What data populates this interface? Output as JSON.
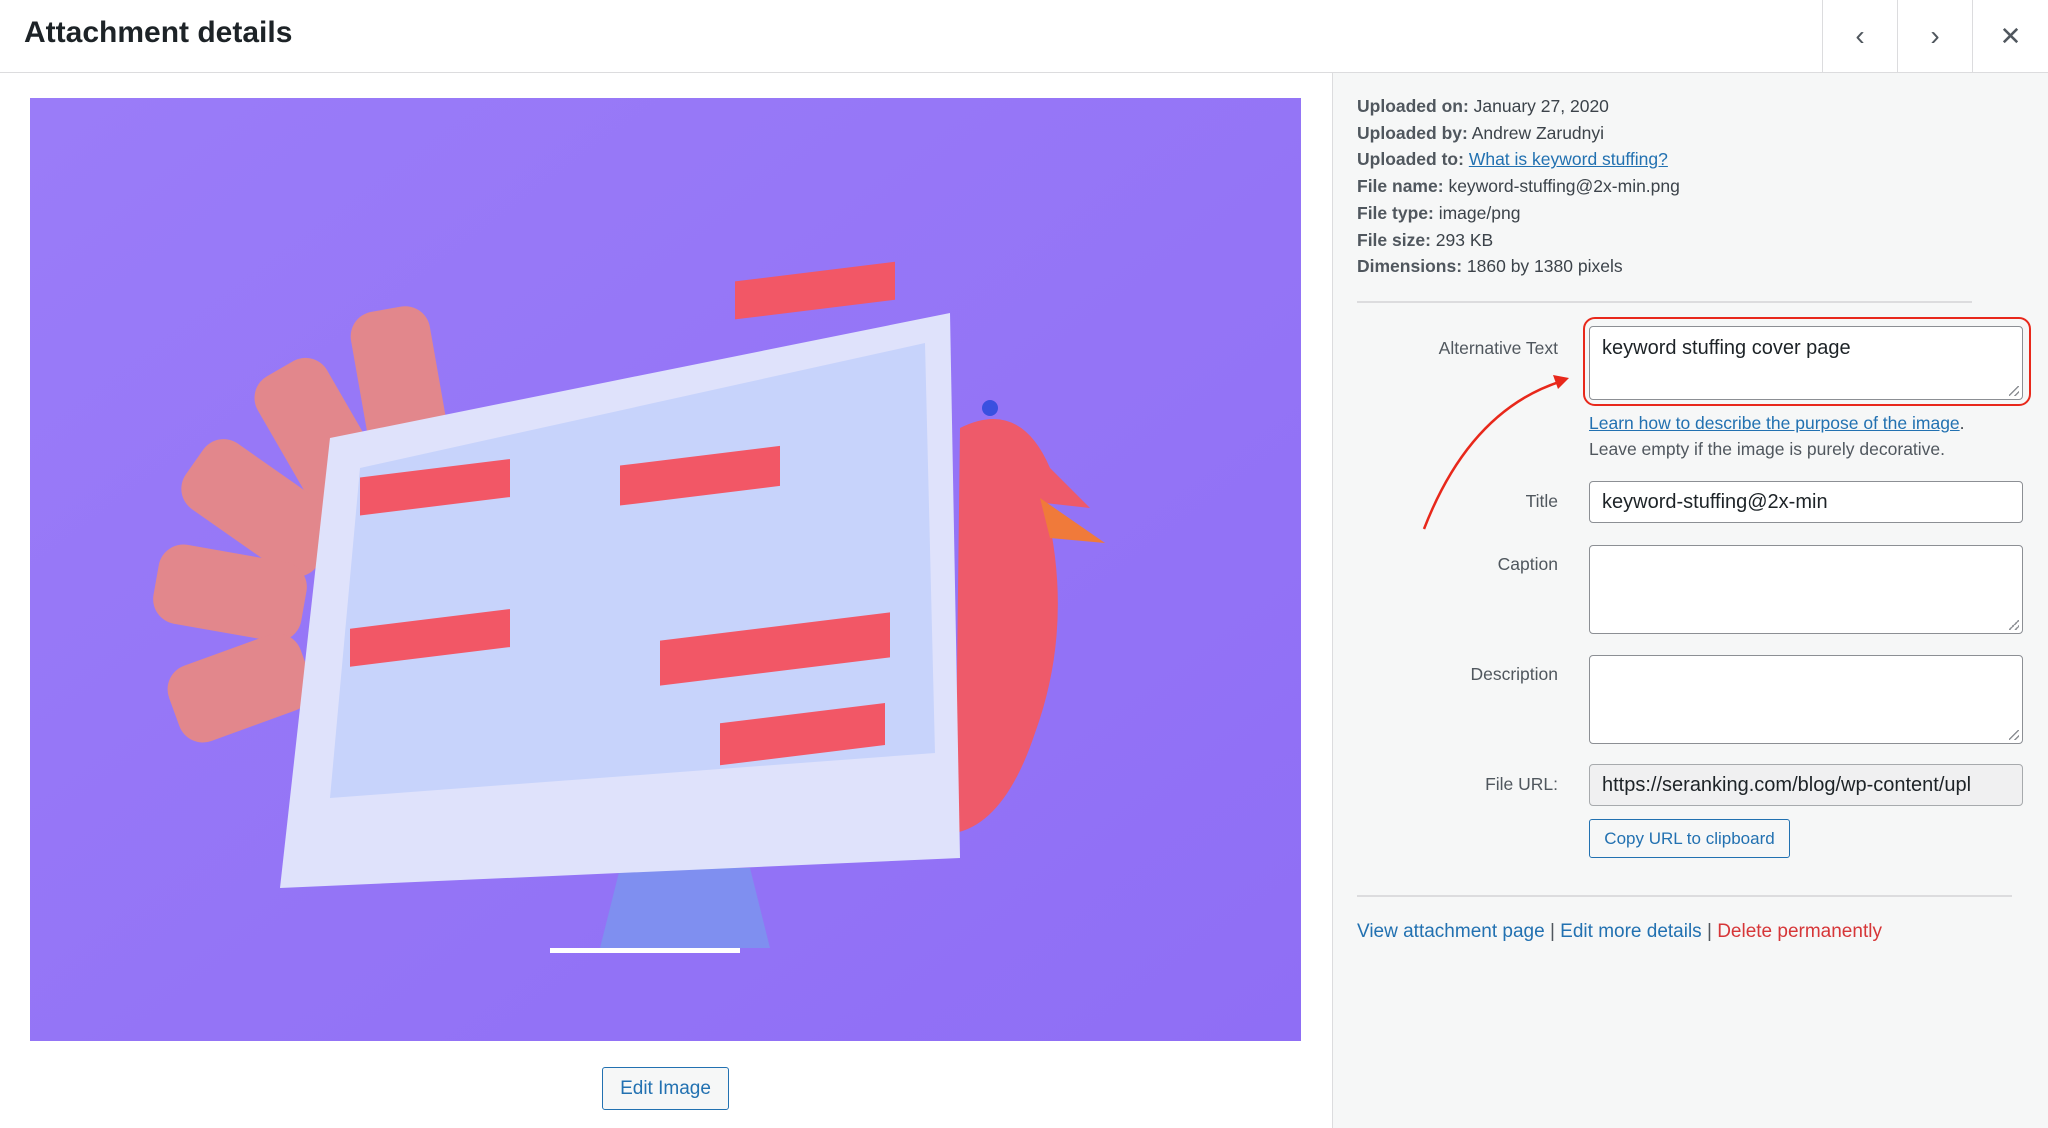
{
  "header": {
    "title": "Attachment details",
    "prev_icon": "chevron-left-icon",
    "next_icon": "chevron-right-icon",
    "close_icon": "close-icon"
  },
  "preview": {
    "edit_label": "Edit Image",
    "bg_color": "#9b7bfa"
  },
  "meta": [
    {
      "label": "Uploaded on:",
      "value": "January 27, 2020"
    },
    {
      "label": "Uploaded by:",
      "value": "Andrew Zarudnyi"
    },
    {
      "label": "Uploaded to:",
      "value": "What is keyword stuffing?",
      "link": true
    },
    {
      "label": "File name:",
      "value": "keyword-stuffing@2x-min.png"
    },
    {
      "label": "File type:",
      "value": "image/png"
    },
    {
      "label": "File size:",
      "value": "293 KB"
    },
    {
      "label": "Dimensions:",
      "value": "1860 by 1380 pixels"
    }
  ],
  "form": {
    "alt": {
      "label": "Alternative Text",
      "value": "keyword stuffing cover page",
      "help_link": "Learn how to describe the purpose of the image",
      "help_period": ".",
      "help_text": "Leave empty if the image is purely decorative."
    },
    "title": {
      "label": "Title",
      "value": "keyword-stuffing@2x-min"
    },
    "caption": {
      "label": "Caption",
      "value": ""
    },
    "description": {
      "label": "Description",
      "value": ""
    },
    "url": {
      "label": "File URL:",
      "value": "https://seranking.com/blog/wp-content/upl"
    },
    "copy_label": "Copy URL to clipboard"
  },
  "actions": {
    "view": "View attachment page",
    "sep": "|",
    "edit": "Edit more details",
    "delete": "Delete permanently"
  },
  "colors": {
    "accent": "#2271b1",
    "danger": "#d63638",
    "highlight": "#e8281b"
  }
}
